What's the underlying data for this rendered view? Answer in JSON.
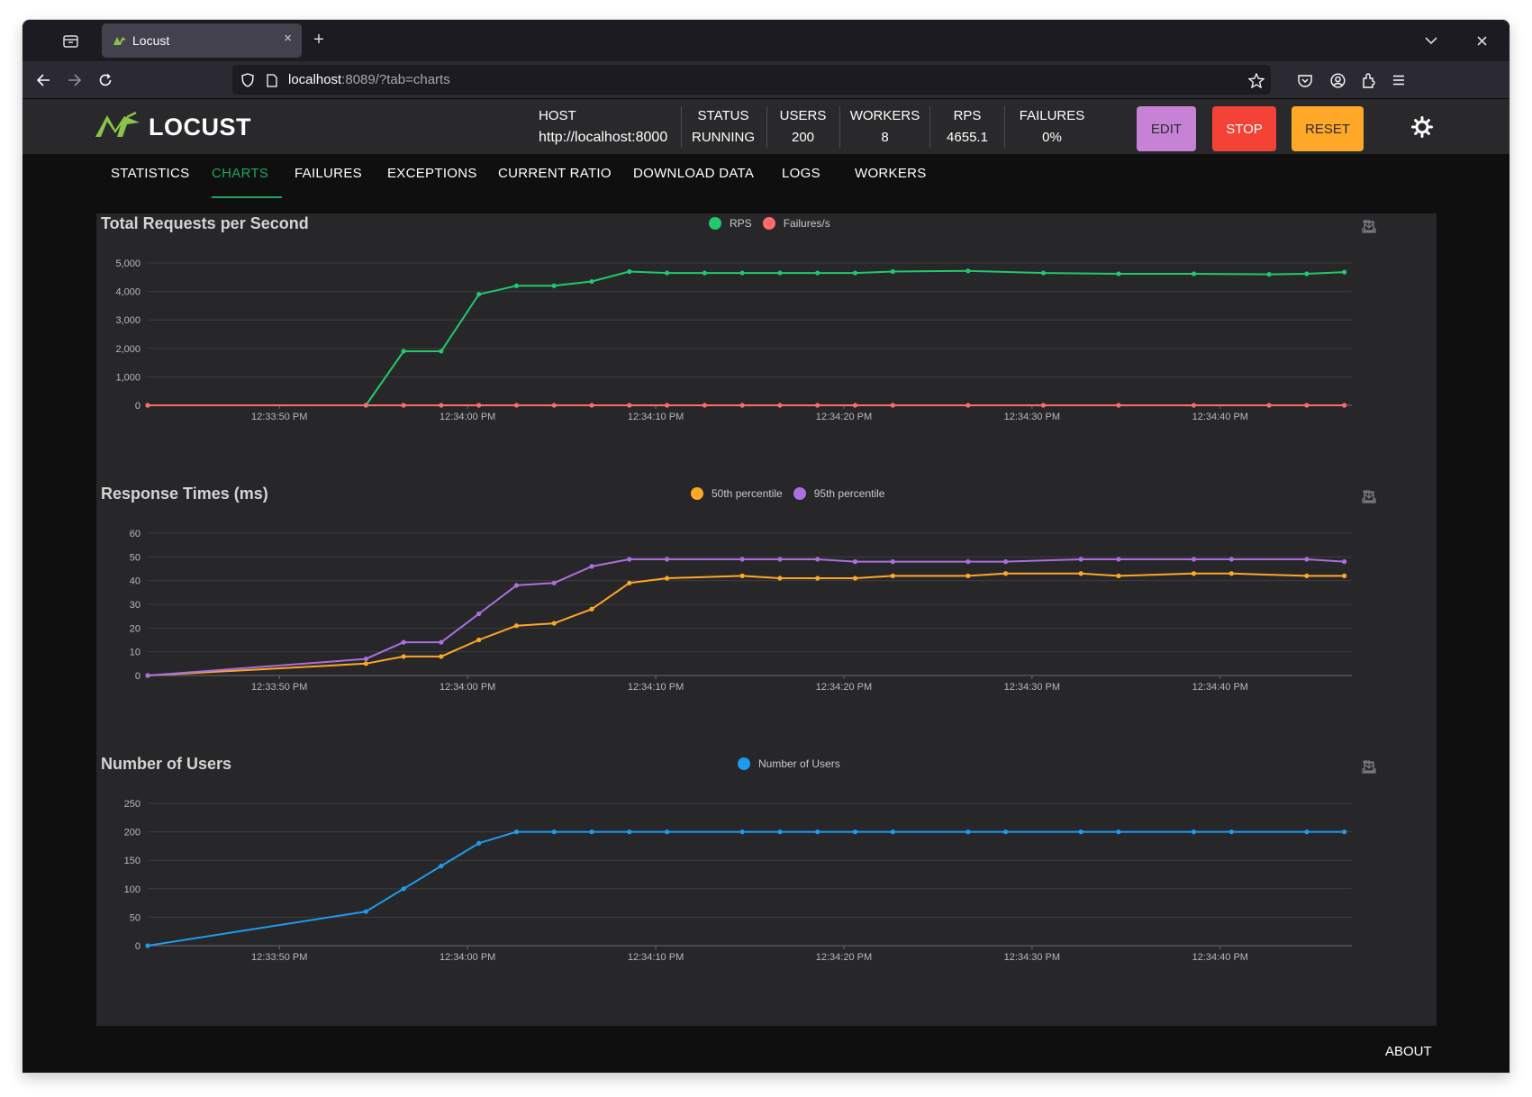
{
  "browser": {
    "tab_title": "Locust",
    "url_host": "localhost",
    "url_rest": ":8089/?tab=charts",
    "new_tab_glyph": "+",
    "close_glyph": "×"
  },
  "header": {
    "logo_text": "LOCUST",
    "stats": [
      {
        "label": "HOST",
        "value": "http://localhost:8000"
      },
      {
        "label": "STATUS",
        "value": "RUNNING"
      },
      {
        "label": "USERS",
        "value": "200"
      },
      {
        "label": "WORKERS",
        "value": "8"
      },
      {
        "label": "RPS",
        "value": "4655.1"
      },
      {
        "label": "FAILURES",
        "value": "0%"
      }
    ],
    "buttons": {
      "edit": "EDIT",
      "stop": "STOP",
      "reset": "RESET"
    },
    "brand_colors": {
      "accent": "#1fa463",
      "edit": "#c782d6",
      "stop": "#f44336",
      "reset": "#ffa726"
    }
  },
  "tabs": [
    {
      "label": "STATISTICS",
      "active": false
    },
    {
      "label": "CHARTS",
      "active": true
    },
    {
      "label": "FAILURES",
      "active": false
    },
    {
      "label": "EXCEPTIONS",
      "active": false
    },
    {
      "label": "CURRENT RATIO",
      "active": false
    },
    {
      "label": "DOWNLOAD DATA",
      "active": false
    },
    {
      "label": "LOGS",
      "active": false
    },
    {
      "label": "WORKERS",
      "active": false
    }
  ],
  "footer": {
    "about": "ABOUT"
  },
  "chart_data": [
    {
      "type": "line",
      "title": "Total Requests per Second",
      "ylim": [
        0,
        5000
      ],
      "yticks": [
        0,
        1000,
        2000,
        3000,
        4000,
        5000
      ],
      "ytick_labels": [
        "0",
        "1,000",
        "2,000",
        "3,000",
        "4,000",
        "5,000"
      ],
      "xlim_seconds": [
        0,
        64
      ],
      "xtick_labels": [
        "12:33:50 PM",
        "12:34:00 PM",
        "12:34:10 PM",
        "12:34:20 PM",
        "12:34:30 PM",
        "12:34:40 PM"
      ],
      "xtick_seconds": [
        7,
        17,
        27,
        37,
        47,
        57
      ],
      "x_seconds": [
        0,
        11.6,
        13.6,
        15.6,
        17.6,
        19.6,
        21.6,
        23.6,
        25.6,
        27.6,
        29.6,
        31.6,
        33.6,
        35.6,
        37.6,
        39.6,
        43.6,
        47.6,
        51.6,
        55.6,
        59.6,
        61.6,
        63.6
      ],
      "x_note": "x_seconds are seconds after 12:33:43 PM",
      "grid": true,
      "legend_position": "top-center",
      "series": [
        {
          "name": "RPS",
          "color": "#1fc96d",
          "values": [
            0,
            0,
            1900,
            1900,
            3900,
            4200,
            4200,
            4350,
            4700,
            4650,
            4650,
            4650,
            4650,
            4650,
            4650,
            4700,
            4720,
            4650,
            4620,
            4620,
            4600,
            4620,
            4680
          ]
        },
        {
          "name": "Failures/s",
          "color": "#ff6b6b",
          "values": [
            0,
            0,
            0,
            0,
            0,
            0,
            0,
            0,
            0,
            0,
            0,
            0,
            0,
            0,
            0,
            0,
            0,
            0,
            0,
            0,
            0,
            0,
            0
          ]
        }
      ]
    },
    {
      "type": "line",
      "title": "Response Times (ms)",
      "ylim": [
        0,
        60
      ],
      "yticks": [
        0,
        10,
        20,
        30,
        40,
        50,
        60
      ],
      "ytick_labels": [
        "0",
        "10",
        "20",
        "30",
        "40",
        "50",
        "60"
      ],
      "xlim_seconds": [
        0,
        64
      ],
      "xtick_labels": [
        "12:33:50 PM",
        "12:34:00 PM",
        "12:34:10 PM",
        "12:34:20 PM",
        "12:34:30 PM",
        "12:34:40 PM"
      ],
      "xtick_seconds": [
        7,
        17,
        27,
        37,
        47,
        57
      ],
      "x_seconds": [
        0,
        11.6,
        13.6,
        15.6,
        17.6,
        19.6,
        21.6,
        23.6,
        25.6,
        27.6,
        31.6,
        33.6,
        35.6,
        37.6,
        39.6,
        43.6,
        45.6,
        49.6,
        51.6,
        55.6,
        57.6,
        61.6,
        63.6
      ],
      "x_note": "x_seconds are seconds after 12:33:43 PM",
      "grid": true,
      "legend_position": "top-center",
      "series": [
        {
          "name": "50th percentile",
          "color": "#ffa726",
          "values": [
            0,
            5,
            8,
            8,
            15,
            21,
            22,
            28,
            39,
            41,
            42,
            41,
            41,
            41,
            42,
            42,
            43,
            43,
            42,
            43,
            43,
            42,
            42
          ]
        },
        {
          "name": "95th percentile",
          "color": "#ab6fe0",
          "values": [
            0,
            7,
            14,
            14,
            26,
            38,
            39,
            46,
            49,
            49,
            49,
            49,
            49,
            48,
            48,
            48,
            48,
            49,
            49,
            49,
            49,
            49,
            48
          ]
        }
      ]
    },
    {
      "type": "line",
      "title": "Number of Users",
      "ylim": [
        0,
        250
      ],
      "yticks": [
        0,
        50,
        100,
        150,
        200,
        250
      ],
      "ytick_labels": [
        "0",
        "50",
        "100",
        "150",
        "200",
        "250"
      ],
      "xlim_seconds": [
        0,
        64
      ],
      "xtick_labels": [
        "12:33:50 PM",
        "12:34:00 PM",
        "12:34:10 PM",
        "12:34:20 PM",
        "12:34:30 PM",
        "12:34:40 PM"
      ],
      "xtick_seconds": [
        7,
        17,
        27,
        37,
        47,
        57
      ],
      "x_seconds": [
        0,
        11.6,
        13.6,
        15.6,
        17.6,
        19.6,
        21.6,
        23.6,
        25.6,
        27.6,
        31.6,
        33.6,
        35.6,
        37.6,
        39.6,
        43.6,
        45.6,
        49.6,
        51.6,
        55.6,
        57.6,
        61.6,
        63.6
      ],
      "x_note": "x_seconds are seconds after 12:33:43 PM",
      "grid": true,
      "legend_position": "top-center",
      "series": [
        {
          "name": "Number of Users",
          "color": "#1e9bf0",
          "values": [
            0,
            60,
            100,
            140,
            180,
            200,
            200,
            200,
            200,
            200,
            200,
            200,
            200,
            200,
            200,
            200,
            200,
            200,
            200,
            200,
            200,
            200,
            200
          ]
        }
      ]
    }
  ]
}
